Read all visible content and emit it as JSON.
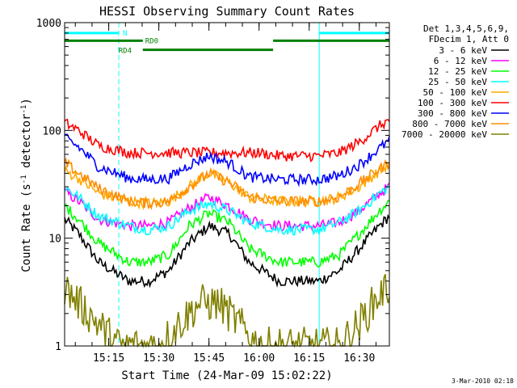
{
  "chart_data": {
    "type": "line",
    "title": "HESSI Observing Summary Count Rates",
    "xlabel": "Start Time (24-Mar-09 15:02:22)",
    "ylabel": "Count Rate (s⁻¹ detector⁻¹)",
    "ylabel_parts": [
      "Count Rate (s",
      "-1",
      " detector",
      "-1",
      ")"
    ],
    "yscale": "log",
    "ylim": [
      1,
      1000
    ],
    "xlim_minutes": [
      15.03,
      16.65
    ],
    "y_ticks": [
      {
        "value": 1,
        "label": "1"
      },
      {
        "value": 10,
        "label": "10"
      },
      {
        "value": 100,
        "label": "100"
      },
      {
        "value": 1000,
        "label": "1000"
      }
    ],
    "x_ticks": [
      {
        "value": 15.25,
        "label": "15:15"
      },
      {
        "value": 15.5,
        "label": "15:30"
      },
      {
        "value": 15.75,
        "label": "15:45"
      },
      {
        "value": 16.0,
        "label": "16:00"
      },
      {
        "value": 16.25,
        "label": "16:15"
      },
      {
        "value": 16.5,
        "label": "16:30"
      }
    ],
    "legend_header": [
      "Det 1,3,4,5,6,9,",
      "FDecim 1, Att 0"
    ],
    "series": [
      {
        "name": "3 - 6 keV",
        "color": "#000000",
        "x": [
          15.03,
          15.1,
          15.2,
          15.35,
          15.45,
          15.55,
          15.65,
          15.75,
          15.85,
          15.95,
          16.1,
          16.3,
          16.4,
          16.5,
          16.6,
          16.65
        ],
        "values": [
          15,
          11,
          6,
          4,
          4,
          5,
          9,
          13,
          11,
          6,
          4,
          4,
          5,
          8,
          13,
          16
        ]
      },
      {
        "name": "6 - 12 keV",
        "color": "#ff00ff",
        "x": [
          15.03,
          15.1,
          15.2,
          15.35,
          15.45,
          15.55,
          15.65,
          15.75,
          15.85,
          15.95,
          16.1,
          16.3,
          16.4,
          16.5,
          16.6,
          16.65
        ],
        "values": [
          27,
          22,
          15,
          13,
          13,
          14,
          19,
          24,
          20,
          15,
          13,
          13,
          14,
          18,
          26,
          30
        ]
      },
      {
        "name": "12 - 25 keV",
        "color": "#00ff00",
        "x": [
          15.03,
          15.1,
          15.2,
          15.35,
          15.45,
          15.55,
          15.65,
          15.75,
          15.85,
          15.95,
          16.1,
          16.3,
          16.4,
          16.5,
          16.6,
          16.65
        ],
        "values": [
          20,
          15,
          9,
          6,
          6,
          7,
          13,
          17,
          14,
          8,
          6,
          6,
          7,
          11,
          18,
          22
        ]
      },
      {
        "name": "25 - 50 keV",
        "color": "#00ffff",
        "x": [
          15.03,
          15.1,
          15.2,
          15.35,
          15.45,
          15.55,
          15.65,
          15.75,
          15.85,
          15.95,
          16.1,
          16.3,
          16.4,
          16.5,
          16.6,
          16.65
        ],
        "values": [
          30,
          24,
          16,
          13,
          12,
          13,
          18,
          21,
          18,
          14,
          12,
          12,
          14,
          18,
          26,
          30
        ]
      },
      {
        "name": "50 - 100 keV",
        "color": "#ffaa00",
        "x": [
          15.03,
          15.1,
          15.2,
          15.35,
          15.45,
          15.55,
          15.65,
          15.75,
          15.85,
          15.95,
          16.1,
          16.3,
          16.4,
          16.5,
          16.6,
          16.65
        ],
        "values": [
          42,
          36,
          26,
          22,
          21,
          22,
          30,
          40,
          33,
          24,
          22,
          22,
          24,
          30,
          42,
          48
        ]
      },
      {
        "name": "100 - 300 keV",
        "color": "#ff0000",
        "x": [
          15.03,
          15.1,
          15.2,
          15.35,
          15.4,
          15.75,
          15.97,
          16.0,
          16.1,
          16.3,
          16.4,
          16.5,
          16.6,
          16.65
        ],
        "values": [
          118,
          100,
          72,
          62,
          62,
          62,
          62,
          62,
          58,
          58,
          62,
          78,
          110,
          125
        ]
      },
      {
        "name": "300 - 800 keV",
        "color": "#0000ff",
        "x": [
          15.03,
          15.1,
          15.2,
          15.35,
          15.45,
          15.55,
          15.65,
          15.75,
          15.85,
          15.95,
          16.1,
          16.3,
          16.4,
          16.5,
          16.6,
          16.65
        ],
        "values": [
          85,
          70,
          46,
          36,
          35,
          36,
          48,
          58,
          50,
          37,
          35,
          35,
          38,
          48,
          68,
          80
        ]
      },
      {
        "name": "800 - 7000 keV",
        "color": "#ff8c00",
        "x": [
          15.03,
          15.1,
          15.2,
          15.35,
          15.45,
          15.55,
          15.65,
          15.75,
          15.85,
          15.95,
          16.1,
          16.3,
          16.4,
          16.5,
          16.6,
          16.65
        ],
        "values": [
          50,
          40,
          29,
          22,
          21,
          22,
          30,
          40,
          33,
          24,
          22,
          22,
          24,
          32,
          44,
          50
        ]
      },
      {
        "name": "7000 - 20000 keV",
        "color": "#808000",
        "x": [
          15.03,
          15.1,
          15.2,
          15.3,
          15.4,
          15.5,
          15.6,
          15.7,
          15.8,
          15.9,
          16.0,
          16.1,
          16.2,
          16.3,
          16.4,
          16.5,
          16.6,
          16.65
        ],
        "values": [
          3.5,
          2.5,
          1.6,
          1.0,
          1.0,
          1.0,
          1.6,
          2.5,
          2.5,
          1.6,
          1.0,
          1.0,
          1.0,
          1.0,
          1.0,
          1.6,
          3.0,
          3.5
        ]
      }
    ],
    "state_bars": [
      {
        "label": "N",
        "color": "#00ffff",
        "y": 800,
        "segments": [
          [
            15.03,
            15.3
          ],
          [
            16.3,
            16.65
          ]
        ]
      },
      {
        "label": "RD0",
        "color": "#008000",
        "y": 680,
        "segments": [
          [
            15.03,
            15.42
          ],
          [
            16.07,
            16.65
          ]
        ]
      },
      {
        "label": "RD4",
        "color": "#008000",
        "y": 560,
        "segments": [
          [
            15.42,
            16.07
          ]
        ]
      }
    ],
    "vertical_markers": [
      {
        "x": 15.03,
        "color": "#00ffff",
        "style": "solid"
      },
      {
        "x": 15.3,
        "color": "#00ffff",
        "style": "dashed"
      },
      {
        "x": 16.3,
        "color": "#00ffff",
        "style": "solid"
      },
      {
        "x": 16.65,
        "color": "#00ffff",
        "style": "dashed"
      }
    ],
    "grid": false,
    "legend_position": "right"
  },
  "footer": {
    "timestamp": "3-Mar-2010 02:18"
  }
}
